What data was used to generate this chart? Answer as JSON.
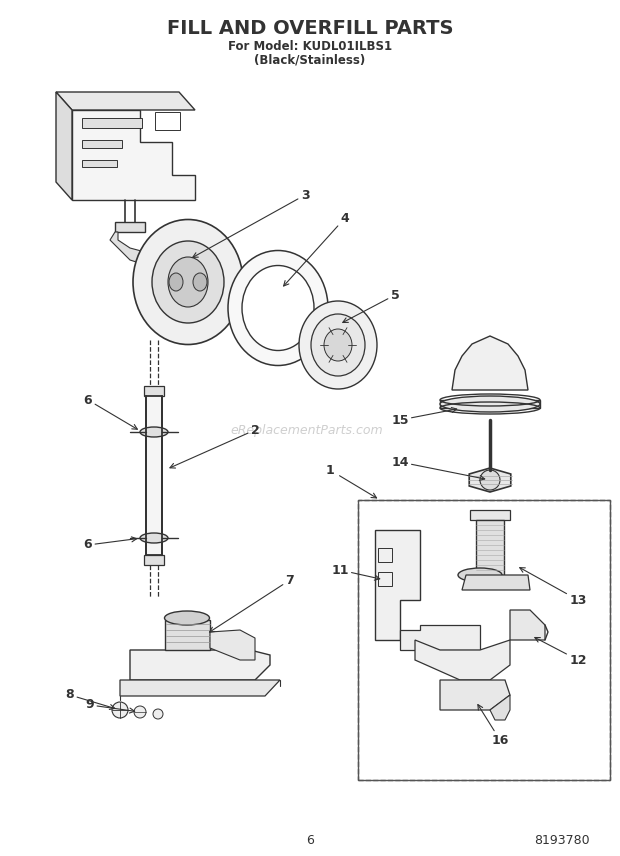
{
  "title": "FILL AND OVERFILL PARTS",
  "subtitle1": "For Model: KUDL01ILBS1",
  "subtitle2": "(Black/Stainless)",
  "page_number": "6",
  "part_number": "8193780",
  "background_color": "#ffffff",
  "line_color": "#333333",
  "watermark": "eReplacementParts.com",
  "figsize": [
    6.2,
    8.56
  ],
  "dpi": 100
}
